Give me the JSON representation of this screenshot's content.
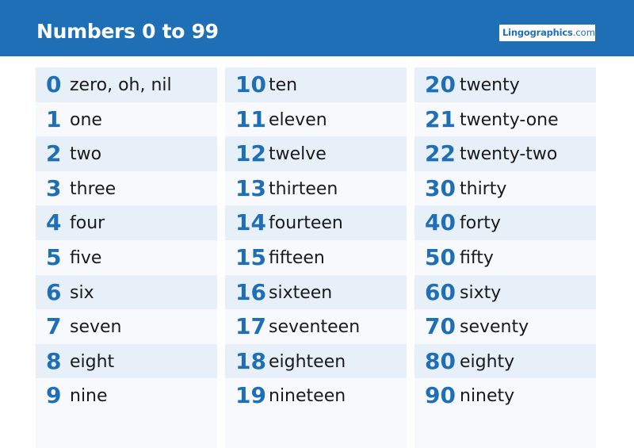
{
  "header": {
    "title": "Numbers 0 to 99",
    "logo_main": "Lingographics",
    "logo_tld": ".com"
  },
  "columns": [
    {
      "rows": [
        {
          "num": "0",
          "word": "zero, oh, nil"
        },
        {
          "num": "1",
          "word": "one"
        },
        {
          "num": "2",
          "word": "two"
        },
        {
          "num": "3",
          "word": "three"
        },
        {
          "num": "4",
          "word": "four"
        },
        {
          "num": "5",
          "word": "five"
        },
        {
          "num": "6",
          "word": "six"
        },
        {
          "num": "7",
          "word": "seven"
        },
        {
          "num": "8",
          "word": "eight"
        },
        {
          "num": "9",
          "word": "nine"
        }
      ]
    },
    {
      "rows": [
        {
          "num": "10",
          "word": "ten"
        },
        {
          "num": "11",
          "word": "eleven"
        },
        {
          "num": "12",
          "word": "twelve"
        },
        {
          "num": "13",
          "word": "thirteen"
        },
        {
          "num": "14",
          "word": "fourteen"
        },
        {
          "num": "15",
          "word": "fifteen"
        },
        {
          "num": "16",
          "word": "sixteen"
        },
        {
          "num": "17",
          "word": "seventeen"
        },
        {
          "num": "18",
          "word": "eighteen"
        },
        {
          "num": "19",
          "word": "nineteen"
        }
      ]
    },
    {
      "rows": [
        {
          "num": "20",
          "word": "twenty"
        },
        {
          "num": "21",
          "word": "twenty-one"
        },
        {
          "num": "22",
          "word": "twenty-two"
        },
        {
          "num": "30",
          "word": "thirty"
        },
        {
          "num": "40",
          "word": "forty"
        },
        {
          "num": "50",
          "word": "fifty"
        },
        {
          "num": "60",
          "word": "sixty"
        },
        {
          "num": "70",
          "word": "seventy"
        },
        {
          "num": "80",
          "word": "eighty"
        },
        {
          "num": "90",
          "word": "ninety"
        }
      ]
    }
  ],
  "colors": {
    "brand_blue": "#1f6fb6",
    "row_shade": "#e7eff8",
    "column_bg": "#f7f9fc",
    "text": "#1a1a1a"
  }
}
